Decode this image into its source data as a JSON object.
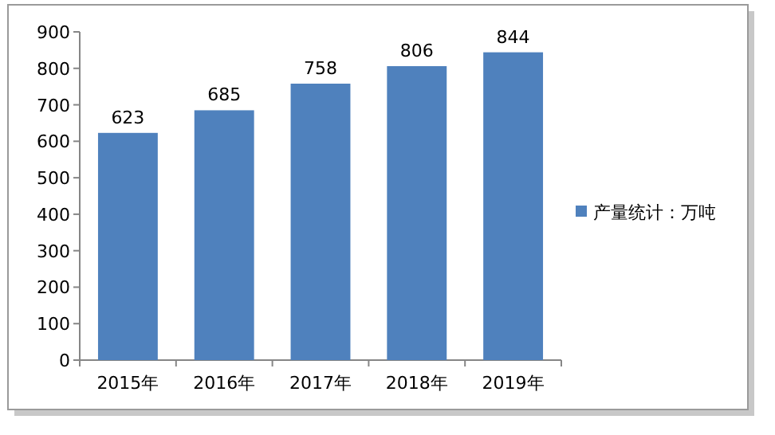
{
  "chart_data": {
    "type": "bar",
    "categories": [
      "2015年",
      "2016年",
      "2017年",
      "2018年",
      "2019年"
    ],
    "series": [
      {
        "name": "产量统计：万吨",
        "color": "#4f81bd",
        "values": [
          623,
          685,
          758,
          806,
          844
        ]
      }
    ],
    "ylim": [
      0,
      900
    ],
    "yticks": [
      0,
      100,
      200,
      300,
      400,
      500,
      600,
      700,
      800,
      900
    ],
    "data_labels": true,
    "legend": "right"
  }
}
